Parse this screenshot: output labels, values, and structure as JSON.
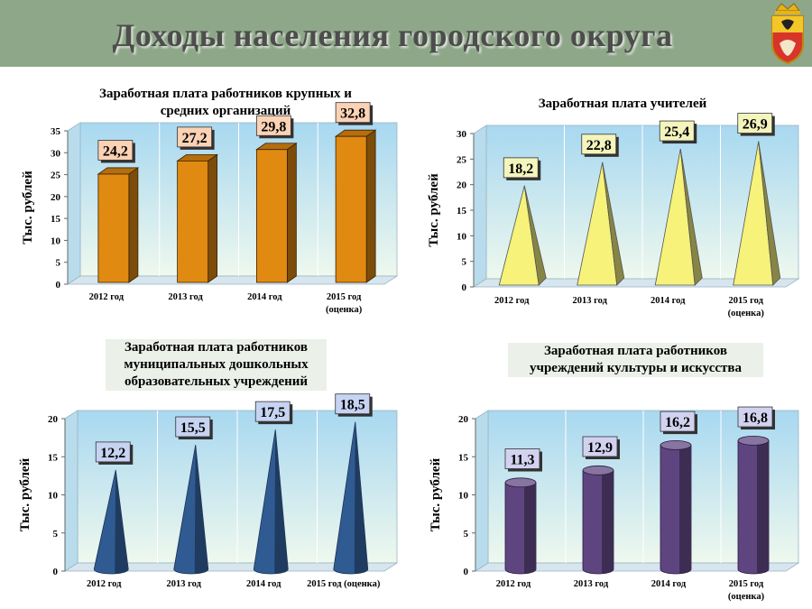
{
  "page": {
    "title": "Доходы населения городского округа",
    "emblem_icon": "coat-of-arms-icon"
  },
  "colors": {
    "header_bg": "#8ea788",
    "chart1_fill": "#e18a12",
    "chart1_label_bg": "#fcd2b5",
    "chart2_fill": "#f6f27a",
    "chart2_label_bg": "#f3f5bd",
    "chart3_fill": "#2f5b92",
    "chart3_label_bg": "#c7d3f2",
    "chart4_fill": "#5f4580",
    "chart4_label_bg": "#d2d2f0"
  },
  "chart_data": [
    {
      "type": "bar",
      "shape": "box",
      "title": "Заработная плата работников крупных и средних организаций",
      "title_lines": [
        "Заработная плата работников крупных и",
        "средних организаций"
      ],
      "categories": [
        "2012 год",
        "2013 год",
        "2014 год",
        "2015 год (оценка)"
      ],
      "category_lines": [
        [
          "2012 год"
        ],
        [
          "2013 год"
        ],
        [
          "2014 год"
        ],
        [
          "2015 год",
          "(оценка)"
        ]
      ],
      "values": [
        24.2,
        27.2,
        29.8,
        32.8
      ],
      "value_labels": [
        "24,2",
        "27,2",
        "29,8",
        "32,8"
      ],
      "ylabel": "Тыс. рублей",
      "ylim": [
        0,
        35
      ],
      "yticks": [
        "0",
        "5",
        "10",
        "15",
        "20",
        "25",
        "30",
        "35"
      ],
      "grid": false,
      "legend": "none"
    },
    {
      "type": "bar",
      "shape": "pyramid",
      "title": "Заработная плата учителей",
      "title_lines": [
        "Заработная плата учителей"
      ],
      "categories": [
        "2012 год",
        "2013 год",
        "2014 год",
        "2015 год (оценка)"
      ],
      "category_lines": [
        [
          "2012 год"
        ],
        [
          "2013 год"
        ],
        [
          "2014 год"
        ],
        [
          "2015 год",
          "(оценка)"
        ]
      ],
      "values": [
        18.2,
        22.8,
        25.4,
        26.9
      ],
      "value_labels": [
        "18,2",
        "22,8",
        "25,4",
        "26,9"
      ],
      "ylabel": "Тыс. рублей",
      "ylim": [
        0,
        30
      ],
      "yticks": [
        "0",
        "5",
        "10",
        "15",
        "20",
        "25",
        "30"
      ],
      "grid": false,
      "legend": "none"
    },
    {
      "type": "bar",
      "shape": "cone",
      "title": "Заработная плата работников муниципальных дошкольных образовательных учреждений",
      "title_lines": [
        "Заработная плата работников",
        "муниципальных дошкольных",
        "образовательных учреждений"
      ],
      "categories": [
        "2012 год",
        "2013 год",
        "2014 год",
        "2015 год (оценка)"
      ],
      "category_lines": [
        [
          "2012 год"
        ],
        [
          "2013 год"
        ],
        [
          "2014 год"
        ],
        [
          "2015 год (оценка)"
        ]
      ],
      "values": [
        12.2,
        15.5,
        17.5,
        18.5
      ],
      "value_labels": [
        "12,2",
        "15,5",
        "17,5",
        "18,5"
      ],
      "ylabel": "Тыс. рублей",
      "ylim": [
        0,
        20
      ],
      "yticks": [
        "0",
        "5",
        "10",
        "15",
        "20"
      ],
      "grid": false,
      "legend": "none"
    },
    {
      "type": "bar",
      "shape": "cylinder",
      "title": "Заработная плата работников учреждений культуры и искусства",
      "title_lines": [
        "Заработная плата работников",
        "учреждений культуры и искусства"
      ],
      "categories": [
        "2012 год",
        "2013 год",
        "2014 год",
        "2015 год (оценка)"
      ],
      "category_lines": [
        [
          "2012 год"
        ],
        [
          "2013 год"
        ],
        [
          "2014 год"
        ],
        [
          "2015 год",
          "(оценка)"
        ]
      ],
      "values": [
        11.3,
        12.9,
        16.2,
        16.8
      ],
      "value_labels": [
        "11,3",
        "12,9",
        "16,2",
        "16,8"
      ],
      "ylabel": "Тыс. рублей",
      "ylim": [
        0,
        20
      ],
      "yticks": [
        "0",
        "5",
        "10",
        "15",
        "20"
      ],
      "grid": false,
      "legend": "none"
    }
  ]
}
